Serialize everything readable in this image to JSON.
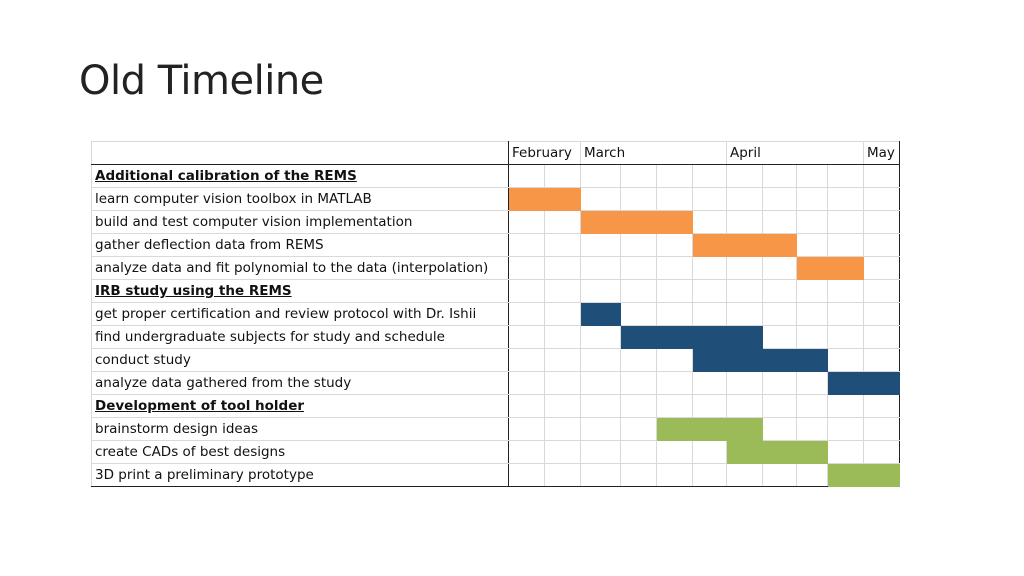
{
  "slide": {
    "title": "Old Timeline"
  },
  "colors": {
    "orange": "#f79646",
    "blue": "#1f4e79",
    "green": "#9bbb59"
  },
  "timeline": {
    "months": [
      {
        "label": "February",
        "span": 2
      },
      {
        "label": "March",
        "span": 4
      },
      {
        "label": "April",
        "span": 4
      },
      {
        "label": "May",
        "span": 1
      }
    ],
    "rows": [
      {
        "label": "Additional calibration of the REMS",
        "section": true
      },
      {
        "label": "learn computer vision toolbox in MATLAB",
        "start": 0,
        "end": 1,
        "color": "orange"
      },
      {
        "label": "build and test computer vision implementation",
        "start": 2,
        "end": 4,
        "color": "orange"
      },
      {
        "label": "gather deflection data from REMS",
        "start": 5,
        "end": 7,
        "color": "orange"
      },
      {
        "label": "analyze data and fit polynomial to the data (interpolation)",
        "start": 8,
        "end": 9,
        "color": "orange"
      },
      {
        "label": "IRB study using the REMS",
        "section": true
      },
      {
        "label": "get proper certification and review protocol with Dr. Ishii",
        "start": 2,
        "end": 2,
        "color": "blue"
      },
      {
        "label": "find undergraduate subjects for study and schedule",
        "start": 3,
        "end": 6,
        "color": "blue"
      },
      {
        "label": "conduct study",
        "start": 5,
        "end": 8,
        "color": "blue"
      },
      {
        "label": "analyze data gathered from the study",
        "start": 9,
        "end": 10,
        "color": "blue"
      },
      {
        "label": "Development of tool holder",
        "section": true
      },
      {
        "label": "brainstorm design ideas",
        "start": 4,
        "end": 6,
        "color": "green"
      },
      {
        "label": "create CADs of best designs",
        "start": 6,
        "end": 8,
        "color": "green"
      },
      {
        "label": "3D print a preliminary prototype",
        "start": 9,
        "end": 10,
        "color": "green"
      }
    ]
  }
}
